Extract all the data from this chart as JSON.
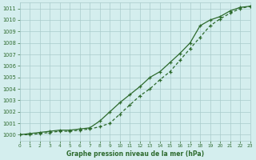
{
  "title": "Graphe pression niveau de la mer (hPa)",
  "background_color": "#d4eeee",
  "grid_color": "#aacccc",
  "line_color": "#2d6a2d",
  "x_min": 0,
  "x_max": 23,
  "y_min": 999.5,
  "y_max": 1011.5,
  "values1": [
    1000.0,
    1000.1,
    1000.2,
    1000.3,
    1000.4,
    1000.4,
    1000.5,
    1000.6,
    1001.2,
    1002.0,
    1002.8,
    1003.5,
    1004.2,
    1005.0,
    1005.5,
    1006.3,
    1007.1,
    1008.0,
    1009.5,
    1010.0,
    1010.3,
    1010.8,
    1011.1,
    1011.2
  ],
  "values2": [
    1000.0,
    1000.0,
    1000.1,
    1000.2,
    1000.3,
    1000.3,
    1000.4,
    1000.5,
    1000.7,
    1001.0,
    1001.8,
    1002.6,
    1003.4,
    1004.0,
    1004.8,
    1005.5,
    1006.5,
    1007.5,
    1008.5,
    1009.5,
    1010.1,
    1010.6,
    1011.0,
    1011.2
  ],
  "yticks": [
    1000,
    1001,
    1002,
    1003,
    1004,
    1005,
    1006,
    1007,
    1008,
    1009,
    1010,
    1011
  ],
  "xticks": [
    0,
    1,
    2,
    3,
    4,
    5,
    6,
    7,
    8,
    9,
    10,
    11,
    12,
    13,
    14,
    15,
    16,
    17,
    18,
    19,
    20,
    21,
    22,
    23
  ],
  "xtick_labels": [
    "0",
    "1",
    "2",
    "3",
    "4",
    "5",
    "6",
    "7",
    "8",
    "9",
    "10",
    "11",
    "12",
    "13",
    "14",
    "15",
    "16",
    "17",
    "18",
    "19",
    "20",
    "21",
    "22",
    "23"
  ]
}
